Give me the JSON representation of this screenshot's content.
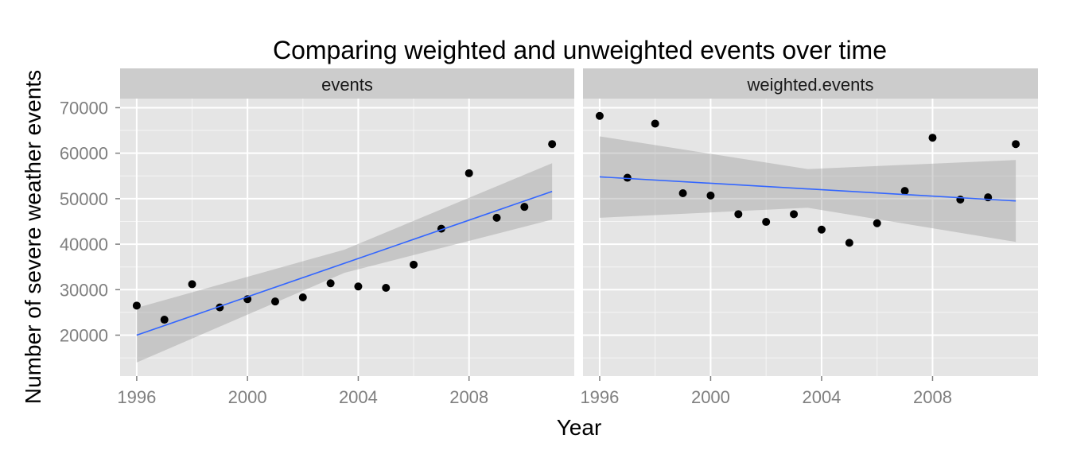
{
  "chart_data": {
    "type": "scatter",
    "title": "Comparing weighted and unweighted events over time",
    "xlabel": "Year",
    "ylabel": "Number of severe weather events",
    "xlim": [
      1995.4,
      2011.8
    ],
    "ylim": [
      11000,
      72000
    ],
    "x_ticks": [
      1996,
      2000,
      2004,
      2008
    ],
    "y_ticks": [
      20000,
      30000,
      40000,
      50000,
      60000,
      70000
    ],
    "x_tick_labels": [
      "1996",
      "2000",
      "2004",
      "2008"
    ],
    "y_tick_labels": [
      "20000",
      "30000",
      "40000",
      "50000",
      "60000",
      "70000"
    ],
    "grid": true,
    "trend": "linear fit with confidence band",
    "colors": {
      "panel_bg": "#e5e5e5",
      "strip_bg": "#cccccc",
      "grid": "#ffffff",
      "point": "#000000",
      "fit_line": "#3366ff",
      "band": "#999999"
    },
    "facets": [
      {
        "label": "events",
        "x": [
          1996,
          1997,
          1998,
          1999,
          2000,
          2001,
          2002,
          2003,
          2004,
          2005,
          2006,
          2007,
          2008,
          2009,
          2010,
          2011
        ],
        "y": [
          26500,
          23400,
          31200,
          26100,
          27900,
          27400,
          28300,
          31400,
          30700,
          30400,
          35500,
          43400,
          55600,
          45800,
          48200,
          62000
        ],
        "fit": {
          "x": [
            1996,
            2011
          ],
          "y": [
            20000,
            51600
          ]
        },
        "band": {
          "x": [
            1996,
            2003.5,
            2011
          ],
          "lower": [
            14000,
            33700,
            45400
          ],
          "upper": [
            26000,
            38800,
            57800
          ]
        }
      },
      {
        "label": "weighted.events",
        "x": [
          1996,
          1997,
          1998,
          1999,
          2000,
          2001,
          2002,
          2003,
          2004,
          2005,
          2006,
          2007,
          2008,
          2009,
          2010,
          2011
        ],
        "y": [
          68200,
          54600,
          66500,
          51200,
          50700,
          46600,
          44900,
          46600,
          43200,
          40300,
          44600,
          51700,
          63400,
          49800,
          50300,
          62000
        ],
        "fit": {
          "x": [
            1996,
            2011
          ],
          "y": [
            54800,
            49500
          ]
        },
        "band": {
          "x": [
            1996,
            2003.5,
            2011
          ],
          "lower": [
            45800,
            48000,
            40500
          ],
          "upper": [
            63700,
            56500,
            58500
          ]
        }
      }
    ]
  }
}
